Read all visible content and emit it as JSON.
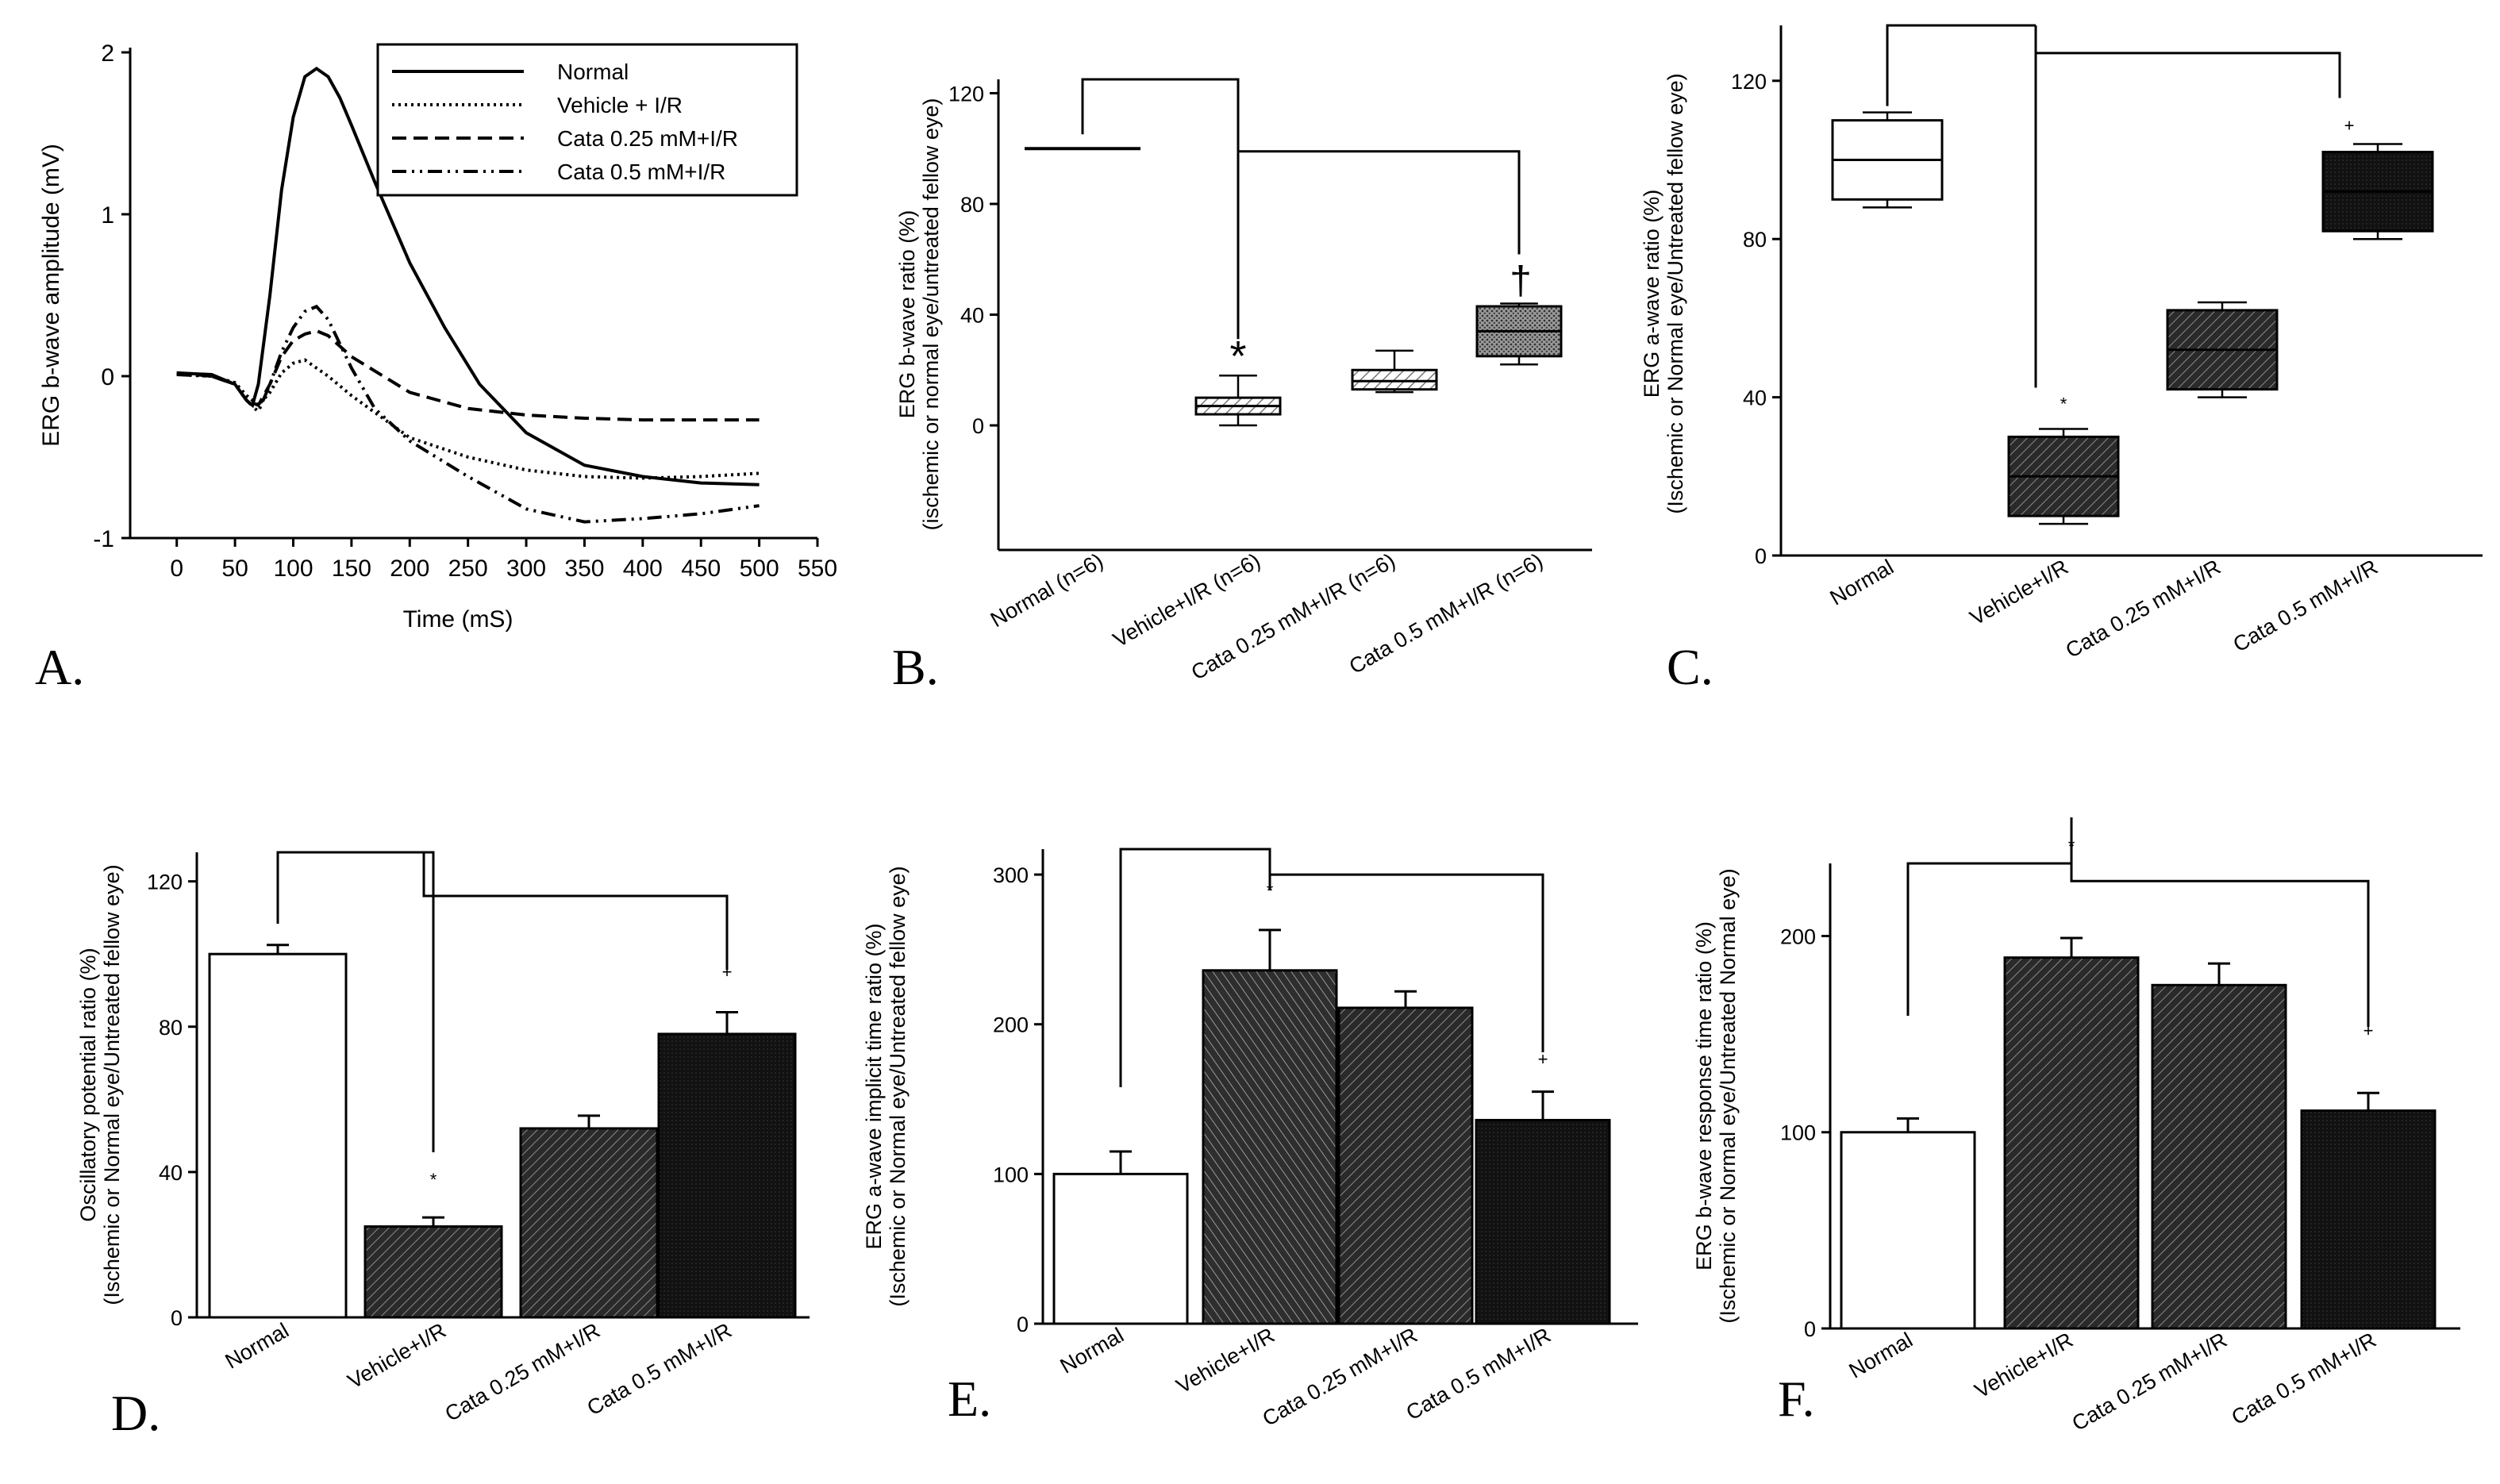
{
  "figure": {
    "panels": [
      "A.",
      "B.",
      "C.",
      "D.",
      "E.",
      "F."
    ]
  },
  "chart_data": [
    {
      "id": "A",
      "type": "line",
      "title": "",
      "xlabel": "Time (mS)",
      "ylabel": "ERG b-wave amplitude (mV)",
      "xlim": [
        -40,
        550
      ],
      "ylim": [
        -1,
        2
      ],
      "xticks": [
        0,
        50,
        100,
        150,
        200,
        250,
        300,
        350,
        400,
        450,
        500,
        550
      ],
      "yticks": [
        -1,
        0,
        1,
        2
      ],
      "legend_position": "top-right",
      "series": [
        {
          "name": "Normal",
          "dash": "solid",
          "x": [
            0,
            30,
            50,
            60,
            65,
            70,
            80,
            90,
            100,
            110,
            120,
            130,
            140,
            150,
            170,
            200,
            230,
            260,
            300,
            350,
            400,
            450,
            500
          ],
          "y": [
            0.02,
            0.01,
            -0.05,
            -0.15,
            -0.18,
            -0.05,
            0.5,
            1.15,
            1.6,
            1.85,
            1.9,
            1.85,
            1.72,
            1.55,
            1.2,
            0.7,
            0.3,
            -0.05,
            -0.35,
            -0.55,
            -0.62,
            -0.66,
            -0.67
          ]
        },
        {
          "name": "Vehicle + I/R",
          "dash": "dot",
          "x": [
            0,
            30,
            50,
            60,
            70,
            80,
            90,
            100,
            110,
            130,
            150,
            200,
            250,
            300,
            350,
            400,
            450,
            500
          ],
          "y": [
            0.01,
            0.0,
            -0.04,
            -0.12,
            -0.18,
            -0.1,
            0.02,
            0.08,
            0.1,
            0.0,
            -0.12,
            -0.38,
            -0.5,
            -0.58,
            -0.62,
            -0.63,
            -0.62,
            -0.6
          ]
        },
        {
          "name": "Cata 0.25 mM+I/R",
          "dash": "dash",
          "x": [
            0,
            30,
            50,
            60,
            70,
            80,
            90,
            100,
            110,
            120,
            130,
            150,
            200,
            250,
            300,
            350,
            400,
            450,
            500
          ],
          "y": [
            0.02,
            0.0,
            -0.05,
            -0.15,
            -0.18,
            -0.05,
            0.12,
            0.22,
            0.26,
            0.28,
            0.25,
            0.12,
            -0.1,
            -0.2,
            -0.24,
            -0.26,
            -0.27,
            -0.27,
            -0.27
          ]
        },
        {
          "name": "Cata 0.5 mM+I/R",
          "dash": "dashdotdot",
          "x": [
            0,
            30,
            50,
            60,
            70,
            80,
            90,
            100,
            110,
            120,
            130,
            150,
            170,
            200,
            250,
            300,
            350,
            400,
            450,
            500
          ],
          "y": [
            0.01,
            0.0,
            -0.05,
            -0.15,
            -0.22,
            -0.05,
            0.15,
            0.3,
            0.4,
            0.43,
            0.35,
            0.05,
            -0.2,
            -0.4,
            -0.62,
            -0.82,
            -0.9,
            -0.88,
            -0.85,
            -0.8
          ]
        }
      ]
    },
    {
      "id": "B",
      "type": "box",
      "title": "",
      "ylabel": "ERG b-wave ratio (%)",
      "ylabel2": "(ischemic or normal eye/untreated fellow eye)",
      "categories": [
        "Normal (n=6)",
        "Vehicle+I/R (n=6)",
        "Cata 0.25 mM+I/R (n=6)",
        "Cata 0.5 mM+I/R (n=6)"
      ],
      "ylim": [
        -45,
        125
      ],
      "yticks": [
        0,
        40,
        80,
        120
      ],
      "boxes": [
        {
          "min": 100,
          "q1": 100,
          "median": 100,
          "q3": 100,
          "max": 100,
          "fill": "none"
        },
        {
          "min": 0,
          "q1": 4,
          "median": 7,
          "q3": 10,
          "max": 18,
          "fill": "hatch-light"
        },
        {
          "min": 12,
          "q1": 13,
          "median": 16,
          "q3": 20,
          "max": 27,
          "fill": "hatch-light"
        },
        {
          "min": 22,
          "q1": 25,
          "median": 34,
          "q3": 43,
          "max": 44,
          "fill": "dots"
        }
      ],
      "markers": [
        {
          "category": 1,
          "symbol": "*"
        },
        {
          "category": 3,
          "symbol": "†"
        }
      ],
      "brackets_top": [
        125,
        99
      ]
    },
    {
      "id": "C",
      "type": "box",
      "title": "",
      "ylabel": "ERG a-wave ratio (%)",
      "ylabel2": "(Ischemic or Normal eye/Untreated fellow eye)",
      "categories": [
        "Normal",
        "Vehicle+I/R",
        "Cata 0.25 mM+I/R",
        "Cata 0.5 mM+I/R"
      ],
      "ylim": [
        0,
        134
      ],
      "yticks": [
        0,
        40,
        80,
        120
      ],
      "boxes": [
        {
          "min": 88,
          "q1": 90,
          "median": 100,
          "q3": 110,
          "max": 112,
          "fill": "none"
        },
        {
          "min": 8,
          "q1": 10,
          "median": 20,
          "q3": 30,
          "max": 32,
          "fill": "hatch-dark"
        },
        {
          "min": 40,
          "q1": 42,
          "median": 52,
          "q3": 62,
          "max": 64,
          "fill": "hatch-dark"
        },
        {
          "min": 80,
          "q1": 82,
          "median": 92,
          "q3": 102,
          "max": 104,
          "fill": "solid-dark"
        }
      ],
      "markers": [
        {
          "category": 1,
          "symbol": "*"
        },
        {
          "category": 3,
          "symbol": "+"
        }
      ],
      "brackets_top": [
        134,
        127
      ]
    },
    {
      "id": "D",
      "type": "bar",
      "title": "",
      "ylabel": "Oscillatory potential ratio (%)",
      "ylabel2": "(Ischemic or Normal eye/Untreated fellow eye)",
      "categories": [
        "Normal",
        "Vehicle+I/R",
        "Cata 0.25 mM+I/R",
        "Cata 0.5 mM+I/R"
      ],
      "values": [
        100,
        25,
        52,
        78
      ],
      "errors": [
        2.5,
        2.5,
        3.5,
        6
      ],
      "ylim": [
        0,
        128
      ],
      "yticks": [
        0,
        40,
        80,
        120
      ],
      "fills": [
        "none",
        "hatch-dark",
        "hatch-dark",
        "solid-dark"
      ],
      "markers": [
        {
          "category": 1,
          "symbol": "*"
        },
        {
          "category": 3,
          "symbol": "+"
        }
      ],
      "brackets_top": [
        128,
        116
      ]
    },
    {
      "id": "E",
      "type": "bar",
      "title": "",
      "ylabel": "ERG a-wave implicit time ratio (%)",
      "ylabel2": "(Ischemic or Normal eye/Untreated fellow eye)",
      "categories": [
        "Normal",
        "Vehicle+I/R",
        "Cata 0.25 mM+I/R",
        "Cata 0.5 mM+I/R"
      ],
      "values": [
        100,
        236,
        211,
        136
      ],
      "errors": [
        15,
        27,
        11,
        19
      ],
      "ylim": [
        0,
        317
      ],
      "yticks": [
        0,
        100,
        200,
        300
      ],
      "fills": [
        "none",
        "hatch-light-on-dark",
        "hatch-dark",
        "solid-dark"
      ],
      "markers": [
        {
          "category": 1,
          "symbol": "*"
        },
        {
          "category": 3,
          "symbol": "+"
        }
      ],
      "brackets_top": [
        317,
        300
      ]
    },
    {
      "id": "F",
      "type": "bar",
      "title": "",
      "ylabel": "ERG b-wave response time ratio (%)",
      "ylabel2": "(Ischemic or Normal eye/Untreated Normal eye)",
      "categories": [
        "Normal",
        "Vehicle+I/R",
        "Cata 0.25 mM+I/R",
        "Cata 0.5 mM+I/R"
      ],
      "values": [
        100,
        189,
        175,
        111
      ],
      "errors": [
        7,
        10,
        11,
        9
      ],
      "ylim": [
        0,
        237
      ],
      "yticks": [
        0,
        100,
        200
      ],
      "fills": [
        "none",
        "hatch-dark",
        "hatch-dark",
        "solid-dark"
      ],
      "markers": [
        {
          "category": 1,
          "symbol": "*"
        },
        {
          "category": 3,
          "symbol": "+"
        }
      ],
      "brackets_top": [
        237,
        228
      ]
    }
  ]
}
